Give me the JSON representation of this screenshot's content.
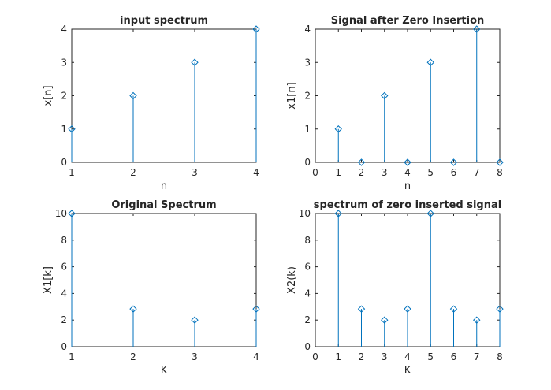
{
  "colors": {
    "series": "#0072BD",
    "axes": "#262626",
    "background": "#ffffff"
  },
  "chart_data": [
    {
      "type": "stem",
      "title": "input spectrum",
      "xlabel": "n",
      "ylabel": "x[n]",
      "xlim": [
        1,
        4
      ],
      "ylim": [
        0,
        4
      ],
      "xticks": [
        1,
        2,
        3,
        4
      ],
      "yticks": [
        0,
        1,
        2,
        3,
        4
      ],
      "grid": false,
      "x": [
        1,
        2,
        3,
        4
      ],
      "values": [
        1,
        2,
        3,
        4
      ]
    },
    {
      "type": "stem",
      "title": "Signal after Zero Insertion",
      "xlabel": "n",
      "ylabel": "x1[n]",
      "xlim": [
        0,
        8
      ],
      "ylim": [
        0,
        4
      ],
      "xticks": [
        0,
        1,
        2,
        3,
        4,
        5,
        6,
        7,
        8
      ],
      "yticks": [
        0,
        1,
        2,
        3,
        4
      ],
      "grid": false,
      "x": [
        1,
        2,
        3,
        4,
        5,
        6,
        7,
        8
      ],
      "values": [
        1,
        0,
        2,
        0,
        3,
        0,
        4,
        0
      ]
    },
    {
      "type": "stem",
      "title": "Original Spectrum",
      "xlabel": "K",
      "ylabel": "X1[k]",
      "xlim": [
        1,
        4
      ],
      "ylim": [
        0,
        10
      ],
      "xticks": [
        1,
        2,
        3,
        4
      ],
      "yticks": [
        0,
        2,
        4,
        6,
        8,
        10
      ],
      "grid": false,
      "x": [
        1,
        2,
        3,
        4
      ],
      "values": [
        10,
        2.83,
        2,
        2.83
      ]
    },
    {
      "type": "stem",
      "title": "spectrum of zero inserted signal",
      "xlabel": "K",
      "ylabel": "X2(k)",
      "xlim": [
        0,
        8
      ],
      "ylim": [
        0,
        10
      ],
      "xticks": [
        0,
        1,
        2,
        3,
        4,
        5,
        6,
        7,
        8
      ],
      "yticks": [
        0,
        2,
        4,
        6,
        8,
        10
      ],
      "grid": false,
      "x": [
        1,
        2,
        3,
        4,
        5,
        6,
        7,
        8
      ],
      "values": [
        10,
        2.83,
        2,
        2.83,
        10,
        2.83,
        2,
        2.83
      ]
    }
  ]
}
